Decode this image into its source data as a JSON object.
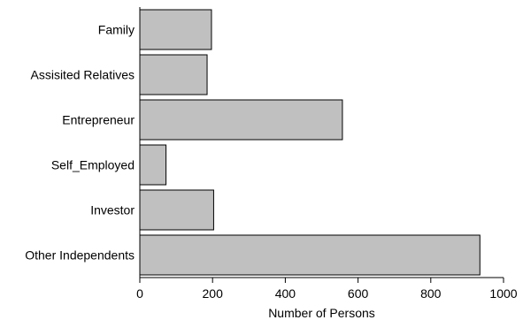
{
  "chart_data": {
    "type": "bar",
    "orientation": "horizontal",
    "categories": [
      "Family",
      "Assisited Relatives",
      "Entrepreneur",
      "Self_Employed",
      "Investor",
      "Other Independents"
    ],
    "values": [
      197,
      185,
      557,
      72,
      203,
      935
    ],
    "title": "",
    "xlabel": "Number of Persons",
    "ylabel": "",
    "xlim": [
      0,
      1000
    ],
    "xticks": [
      0,
      200,
      400,
      600,
      800,
      1000
    ],
    "grid": false,
    "colors": {
      "bar_fill": "#c0c0c0",
      "bar_stroke": "#000000"
    }
  }
}
